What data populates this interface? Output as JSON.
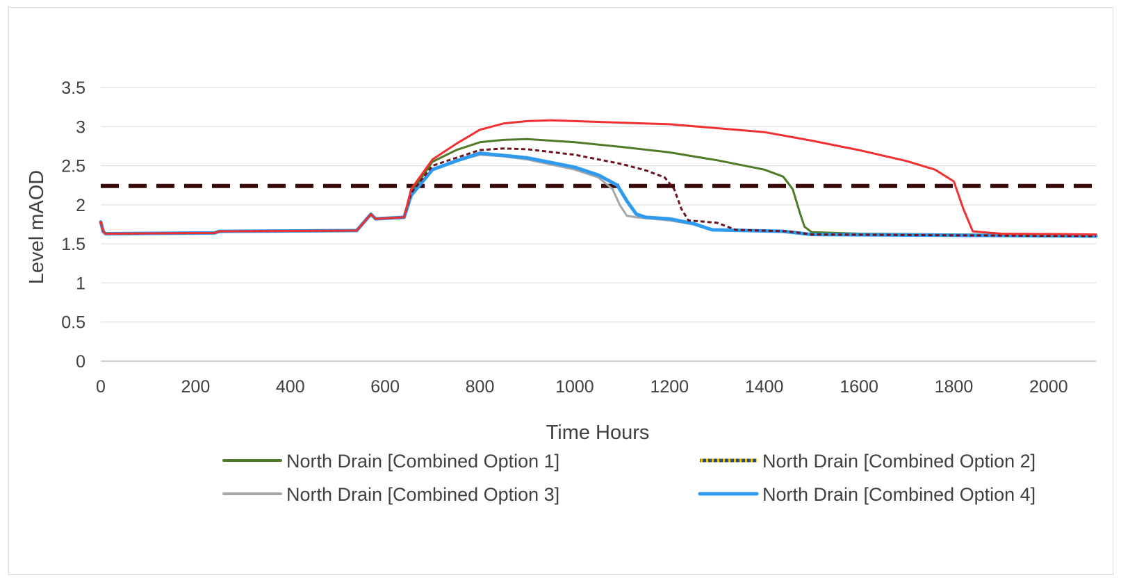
{
  "chart_data": {
    "type": "line",
    "title": "",
    "xlabel": "Time Hours",
    "ylabel": "Level mAOD",
    "xlim": [
      0,
      2100
    ],
    "ylim": [
      0,
      3.5
    ],
    "x_ticks": [
      "0",
      "200",
      "400",
      "600",
      "800",
      "1000",
      "1200",
      "1400",
      "1600",
      "1800",
      "2000"
    ],
    "x_tick_values": [
      0,
      200,
      400,
      600,
      800,
      1000,
      1200,
      1400,
      1600,
      1800,
      2000
    ],
    "y_ticks": [
      "0",
      "0.5",
      "1",
      "1.5",
      "2",
      "2.5",
      "3",
      "3.5"
    ],
    "y_tick_values": [
      0,
      0.5,
      1,
      1.5,
      2,
      2.5,
      3,
      3.5
    ],
    "grid": "horizontal",
    "legend_position": "bottom",
    "series": [
      {
        "name": "North Drain [Combined Option 1]",
        "color": "#4f7a28",
        "style": "solid",
        "in_legend": true,
        "x": [
          0,
          5,
          10,
          240,
          250,
          540,
          570,
          580,
          640,
          655,
          700,
          750,
          800,
          850,
          900,
          1000,
          1100,
          1200,
          1300,
          1400,
          1440,
          1460,
          1475,
          1485,
          1500,
          1600,
          1800,
          2100
        ],
        "y": [
          1.78,
          1.66,
          1.63,
          1.64,
          1.66,
          1.67,
          1.88,
          1.82,
          1.84,
          2.15,
          2.55,
          2.7,
          2.8,
          2.83,
          2.84,
          2.8,
          2.74,
          2.67,
          2.57,
          2.45,
          2.36,
          2.2,
          1.9,
          1.72,
          1.65,
          1.63,
          1.62,
          1.61
        ]
      },
      {
        "name": "North Drain  [Combined Option 2]",
        "color": "#6a1420",
        "style": "dotted",
        "in_legend": true,
        "x": [
          0,
          5,
          10,
          240,
          250,
          540,
          570,
          580,
          640,
          655,
          700,
          750,
          800,
          850,
          900,
          1000,
          1100,
          1150,
          1190,
          1210,
          1225,
          1240,
          1300,
          1340,
          1450,
          1500,
          1800,
          2100
        ],
        "y": [
          1.78,
          1.66,
          1.63,
          1.64,
          1.66,
          1.67,
          1.88,
          1.82,
          1.84,
          2.15,
          2.5,
          2.6,
          2.7,
          2.72,
          2.71,
          2.64,
          2.52,
          2.44,
          2.35,
          2.2,
          1.95,
          1.8,
          1.77,
          1.68,
          1.66,
          1.62,
          1.61,
          1.6
        ]
      },
      {
        "name": "North Drain  [Combined Option 3]",
        "color": "#a6a6a6",
        "style": "solid",
        "in_legend": true,
        "x": [
          0,
          5,
          10,
          240,
          250,
          540,
          570,
          580,
          640,
          655,
          700,
          750,
          800,
          850,
          900,
          1000,
          1050,
          1080,
          1095,
          1110,
          1130,
          1200,
          1250,
          1290,
          1440,
          1500,
          1800,
          2100
        ],
        "y": [
          1.78,
          1.66,
          1.63,
          1.64,
          1.66,
          1.67,
          1.88,
          1.82,
          1.84,
          2.12,
          2.45,
          2.56,
          2.64,
          2.62,
          2.58,
          2.45,
          2.35,
          2.2,
          2.0,
          1.86,
          1.84,
          1.8,
          1.75,
          1.68,
          1.66,
          1.62,
          1.61,
          1.6
        ]
      },
      {
        "name": "North Drain  [Combined Option 4]",
        "color": "#2e9bf0",
        "style": "solid",
        "in_legend": true,
        "x": [
          0,
          5,
          10,
          240,
          250,
          540,
          570,
          580,
          640,
          655,
          700,
          750,
          800,
          850,
          900,
          1000,
          1050,
          1090,
          1110,
          1130,
          1150,
          1200,
          1250,
          1290,
          1440,
          1500,
          1800,
          2100
        ],
        "y": [
          1.78,
          1.66,
          1.63,
          1.64,
          1.66,
          1.67,
          1.88,
          1.82,
          1.84,
          2.12,
          2.45,
          2.56,
          2.66,
          2.63,
          2.6,
          2.48,
          2.38,
          2.25,
          2.05,
          1.88,
          1.84,
          1.82,
          1.76,
          1.68,
          1.66,
          1.62,
          1.61,
          1.6
        ]
      },
      {
        "name": "",
        "color": "#f03030",
        "style": "solid",
        "in_legend": false,
        "x": [
          0,
          5,
          10,
          240,
          250,
          540,
          570,
          580,
          640,
          655,
          700,
          750,
          800,
          850,
          900,
          950,
          1000,
          1100,
          1200,
          1300,
          1400,
          1500,
          1600,
          1700,
          1760,
          1800,
          1820,
          1840,
          1900,
          2100
        ],
        "y": [
          1.78,
          1.66,
          1.63,
          1.64,
          1.66,
          1.67,
          1.88,
          1.82,
          1.84,
          2.2,
          2.58,
          2.78,
          2.96,
          3.04,
          3.07,
          3.08,
          3.07,
          3.05,
          3.03,
          2.98,
          2.93,
          2.82,
          2.7,
          2.56,
          2.45,
          2.3,
          1.95,
          1.66,
          1.63,
          1.62
        ]
      },
      {
        "name": "",
        "color": "#3a0a0a",
        "style": "dashed",
        "in_legend": false,
        "x": [
          0,
          2100
        ],
        "y": [
          2.24,
          2.24
        ]
      }
    ]
  }
}
